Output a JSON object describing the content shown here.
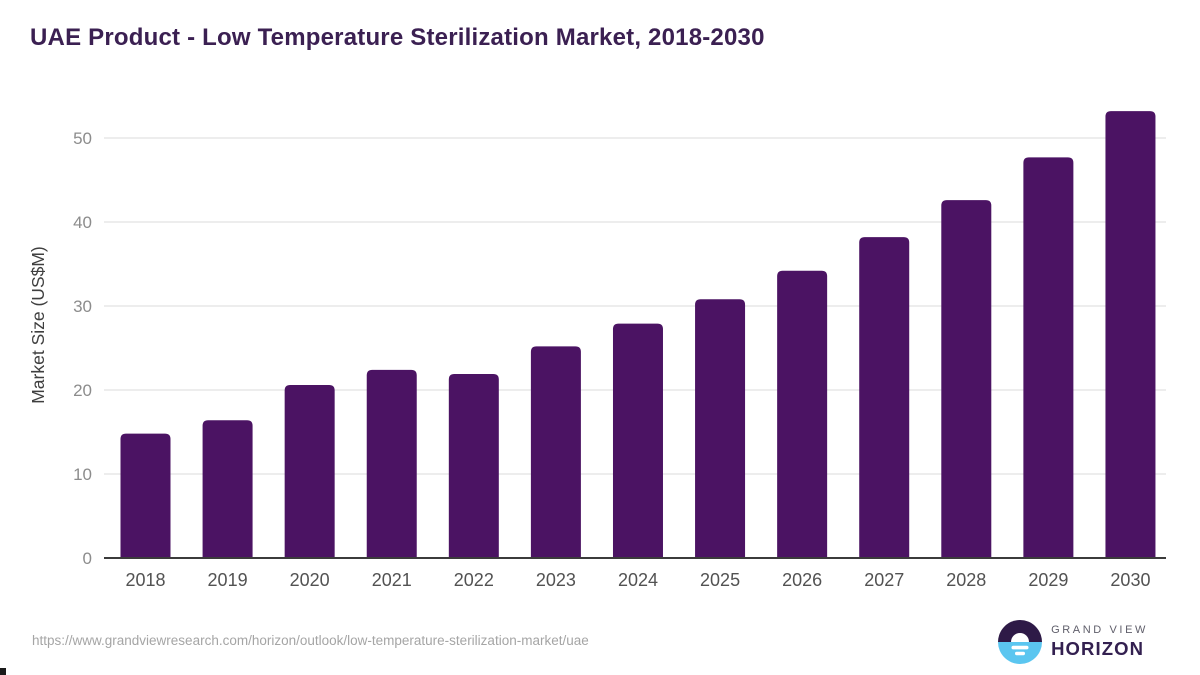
{
  "page": {
    "title": "UAE Product - Low Temperature Sterilization Market, 2018-2030"
  },
  "chart_data": {
    "type": "bar",
    "title": "UAE Product - Low Temperature Sterilization Market, 2018-2030",
    "categories": [
      "2018",
      "2019",
      "2020",
      "2021",
      "2022",
      "2023",
      "2024",
      "2025",
      "2026",
      "2027",
      "2028",
      "2029",
      "2030"
    ],
    "values": [
      14.8,
      16.4,
      20.6,
      22.4,
      21.9,
      25.2,
      27.9,
      30.8,
      34.2,
      38.2,
      42.6,
      47.7,
      53.2
    ],
    "xlabel": "",
    "ylabel": "Market Size (US$M)",
    "ylim": [
      0,
      55
    ],
    "yticks": [
      0,
      10,
      20,
      30,
      40,
      50
    ],
    "grid": true,
    "legend": false,
    "bar_color": "#4b1363"
  },
  "footer": {
    "source_url": "https://www.grandviewresearch.com/horizon/outlook/low-temperature-sterilization-market/uae",
    "logo": {
      "brand_top": "GRAND VIEW",
      "brand_bottom": "HORIZON"
    }
  },
  "colors": {
    "bar": "#4b1363",
    "title": "#3b2052",
    "grid": "#e7e7e7",
    "axis": "#3b3b3b",
    "tick_label": "#8c8c8c",
    "x_label": "#525252",
    "y_title": "#3f3f3f",
    "url": "#a5a5a5",
    "logo_dark": "#2e1a47",
    "logo_blue": "#5bc6f0",
    "logo_gray": "#5f5e6a",
    "logo_text": "#332050"
  }
}
